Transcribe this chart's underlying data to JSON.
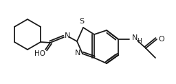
{
  "bg_color": "#ffffff",
  "line_color": "#1a1a1a",
  "lw": 1.3,
  "figsize": [
    2.56,
    1.22
  ],
  "dpi": 100,
  "xlim": [
    0,
    256
  ],
  "ylim": [
    0,
    122
  ]
}
